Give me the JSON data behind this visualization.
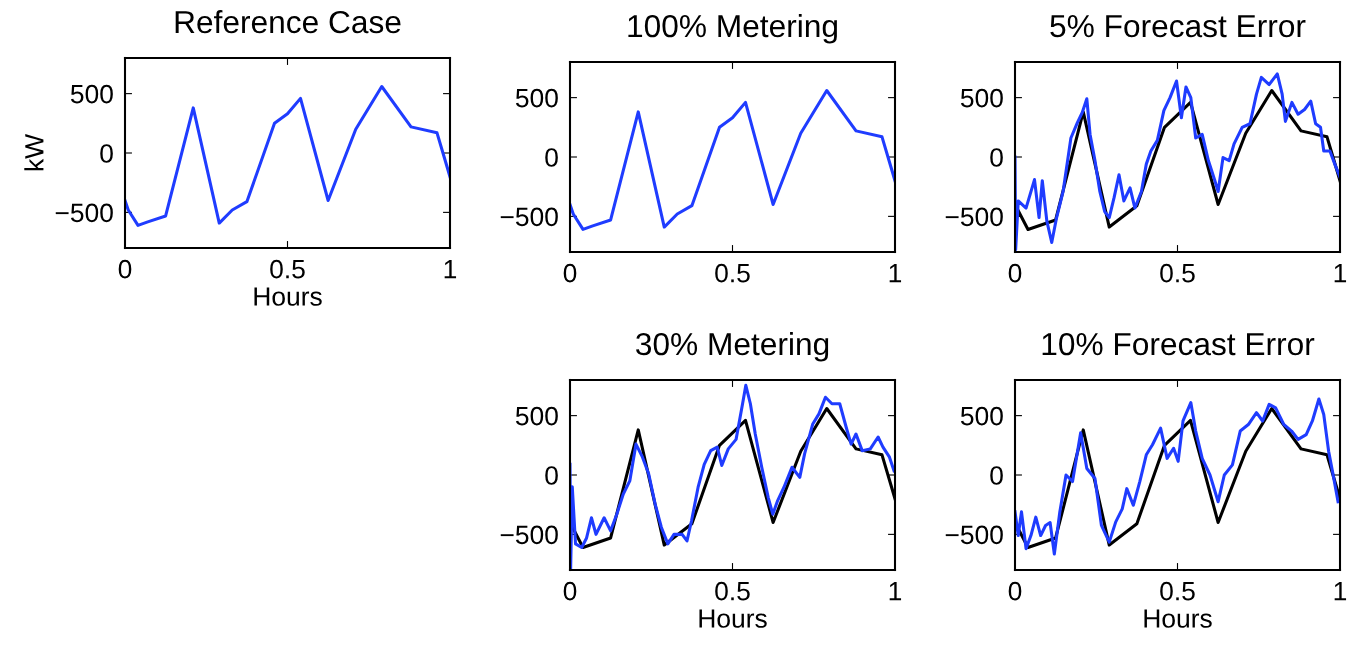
{
  "chart_data": [
    {
      "type": "line",
      "title": "Reference Case",
      "xlabel": "Hours",
      "ylabel": "kW",
      "xlim": [
        0,
        1
      ],
      "xticks": [
        0,
        0.5,
        1
      ],
      "ylim": [
        -800,
        800
      ],
      "yticks": [
        -500,
        0,
        500
      ],
      "grid": false,
      "legend": false,
      "marker": "none",
      "line_style": "solid",
      "series": [
        {
          "color": "#1f3cff",
          "x": [
            0,
            0.01,
            0.04,
            0.07,
            0.125,
            0.21,
            0.29,
            0.33,
            0.375,
            0.46,
            0.5,
            0.54,
            0.625,
            0.71,
            0.79,
            0.88,
            0.96,
            1.0
          ],
          "values": [
            -400,
            -480,
            -610,
            -580,
            -530,
            380,
            -590,
            -480,
            -410,
            250,
            330,
            460,
            -400,
            200,
            560,
            220,
            170,
            -200
          ]
        }
      ]
    },
    {
      "type": "line",
      "title": "100% Metering",
      "xlim": [
        0,
        1
      ],
      "xticks": [
        0,
        0.5,
        1
      ],
      "ylim": [
        -800,
        800
      ],
      "yticks": [
        -500,
        0,
        500
      ],
      "grid": false,
      "legend": false,
      "marker": "none",
      "line_style": "solid",
      "series": [
        {
          "color": "#1f3cff",
          "x": [
            0,
            0.01,
            0.04,
            0.07,
            0.125,
            0.21,
            0.29,
            0.33,
            0.375,
            0.46,
            0.5,
            0.54,
            0.625,
            0.71,
            0.79,
            0.88,
            0.96,
            1.0
          ],
          "values": [
            -400,
            -480,
            -610,
            -580,
            -530,
            380,
            -590,
            -480,
            -410,
            250,
            330,
            460,
            -400,
            200,
            560,
            220,
            170,
            -200
          ]
        }
      ]
    },
    {
      "type": "line",
      "title": "5% Forecast Error",
      "xlim": [
        0,
        1
      ],
      "xticks": [
        0,
        0.5,
        1
      ],
      "ylim": [
        -800,
        800
      ],
      "yticks": [
        -500,
        0,
        500
      ],
      "grid": false,
      "legend": false,
      "marker": "none",
      "line_style": "solid",
      "series": [
        {
          "color": "#000000",
          "x": [
            0,
            0.04,
            0.125,
            0.21,
            0.29,
            0.375,
            0.46,
            0.54,
            0.625,
            0.71,
            0.79,
            0.88,
            0.96,
            1.0
          ],
          "values": [
            -400,
            -610,
            -530,
            380,
            -590,
            -410,
            250,
            460,
            -400,
            200,
            560,
            220,
            170,
            -200
          ]
        },
        {
          "color": "#1f3cff",
          "x": [
            0,
            0.002,
            0.01,
            0.034,
            0.06,
            0.074,
            0.084,
            0.098,
            0.113,
            0.128,
            0.148,
            0.172,
            0.192,
            0.207,
            0.221,
            0.231,
            0.246,
            0.261,
            0.276,
            0.29,
            0.305,
            0.32,
            0.335,
            0.354,
            0.369,
            0.389,
            0.404,
            0.418,
            0.438,
            0.458,
            0.477,
            0.497,
            0.512,
            0.526,
            0.541,
            0.556,
            0.576,
            0.595,
            0.615,
            0.625,
            0.64,
            0.659,
            0.674,
            0.699,
            0.723,
            0.743,
            0.758,
            0.782,
            0.807,
            0.822,
            0.832,
            0.852,
            0.871,
            0.891,
            0.91,
            0.925,
            0.94,
            0.95,
            0.969,
            0.984,
            1.0
          ],
          "values": [
            0,
            -780,
            -370,
            -430,
            -190,
            -510,
            -200,
            -540,
            -720,
            -510,
            -290,
            160,
            290,
            375,
            490,
            190,
            -30,
            -290,
            -460,
            -510,
            -340,
            -150,
            -370,
            -260,
            -430,
            -290,
            -60,
            50,
            140,
            390,
            500,
            640,
            330,
            590,
            500,
            160,
            190,
            -30,
            -200,
            -290,
            -5,
            -30,
            110,
            250,
            280,
            530,
            670,
            610,
            700,
            530,
            300,
            460,
            360,
            400,
            470,
            280,
            250,
            50,
            50,
            -60,
            -170
          ]
        }
      ]
    },
    {
      "type": "line",
      "title": "30% Metering",
      "xlabel": "Hours",
      "xlim": [
        0,
        1
      ],
      "xticks": [
        0,
        0.5,
        1
      ],
      "ylim": [
        -800,
        800
      ],
      "yticks": [
        -500,
        0,
        500
      ],
      "grid": false,
      "legend": false,
      "marker": "none",
      "line_style": "solid",
      "series": [
        {
          "color": "#000000",
          "x": [
            0,
            0.04,
            0.125,
            0.21,
            0.29,
            0.375,
            0.46,
            0.54,
            0.625,
            0.71,
            0.79,
            0.88,
            0.96,
            1.0
          ],
          "values": [
            -400,
            -610,
            -530,
            380,
            -590,
            -410,
            250,
            460,
            -400,
            200,
            560,
            220,
            170,
            -200
          ]
        },
        {
          "color": "#1f3cff",
          "x": [
            0,
            0.002,
            0.007,
            0.017,
            0.036,
            0.051,
            0.066,
            0.08,
            0.105,
            0.125,
            0.144,
            0.164,
            0.184,
            0.203,
            0.223,
            0.242,
            0.262,
            0.281,
            0.301,
            0.32,
            0.345,
            0.36,
            0.374,
            0.394,
            0.413,
            0.433,
            0.453,
            0.467,
            0.487,
            0.511,
            0.531,
            0.541,
            0.555,
            0.57,
            0.59,
            0.61,
            0.624,
            0.639,
            0.658,
            0.683,
            0.707,
            0.722,
            0.747,
            0.766,
            0.786,
            0.806,
            0.83,
            0.85,
            0.865,
            0.88,
            0.899,
            0.924,
            0.948,
            0.963,
            0.983,
            0.997
          ],
          "values": [
            90,
            -790,
            -100,
            -580,
            -610,
            -530,
            -360,
            -500,
            -360,
            -470,
            -330,
            -160,
            -50,
            260,
            150,
            10,
            -245,
            -440,
            -580,
            -500,
            -500,
            -555,
            -385,
            -105,
            90,
            205,
            235,
            80,
            220,
            300,
            600,
            755,
            600,
            345,
            65,
            -190,
            -330,
            -215,
            -105,
            65,
            -20,
            180,
            430,
            515,
            655,
            600,
            600,
            400,
            260,
            345,
            205,
            220,
            320,
            235,
            150,
            35
          ]
        }
      ]
    },
    {
      "type": "line",
      "title": "10% Forecast Error",
      "xlabel": "Hours",
      "xlim": [
        0,
        1
      ],
      "xticks": [
        0,
        0.5,
        1
      ],
      "ylim": [
        -800,
        800
      ],
      "yticks": [
        -500,
        0,
        500
      ],
      "grid": false,
      "legend": false,
      "marker": "none",
      "line_style": "solid",
      "series": [
        {
          "color": "#000000",
          "x": [
            0,
            0.04,
            0.125,
            0.21,
            0.29,
            0.375,
            0.46,
            0.54,
            0.625,
            0.71,
            0.79,
            0.88,
            0.96,
            1.0
          ],
          "values": [
            -400,
            -610,
            -530,
            380,
            -590,
            -410,
            250,
            460,
            -400,
            200,
            560,
            220,
            170,
            -200
          ]
        },
        {
          "color": "#1f3cff",
          "x": [
            0,
            0.01,
            0.02,
            0.034,
            0.049,
            0.064,
            0.079,
            0.094,
            0.108,
            0.121,
            0.138,
            0.157,
            0.177,
            0.202,
            0.221,
            0.246,
            0.266,
            0.29,
            0.31,
            0.33,
            0.344,
            0.364,
            0.384,
            0.404,
            0.423,
            0.448,
            0.468,
            0.488,
            0.502,
            0.517,
            0.541,
            0.556,
            0.576,
            0.6,
            0.625,
            0.644,
            0.669,
            0.693,
            0.718,
            0.743,
            0.762,
            0.782,
            0.802,
            0.827,
            0.851,
            0.871,
            0.896,
            0.915,
            0.935,
            0.95,
            0.965,
            0.979,
            0.994
          ],
          "values": [
            -310,
            -510,
            -310,
            -620,
            -510,
            -355,
            -510,
            -425,
            -400,
            -665,
            -310,
            0,
            -55,
            355,
            55,
            -30,
            -425,
            -565,
            -395,
            -285,
            -115,
            -255,
            -55,
            170,
            255,
            395,
            140,
            225,
            115,
            455,
            610,
            370,
            140,
            0,
            -225,
            0,
            85,
            370,
            425,
            525,
            455,
            595,
            565,
            425,
            370,
            300,
            340,
            455,
            640,
            510,
            200,
            0,
            -225
          ]
        }
      ]
    }
  ]
}
